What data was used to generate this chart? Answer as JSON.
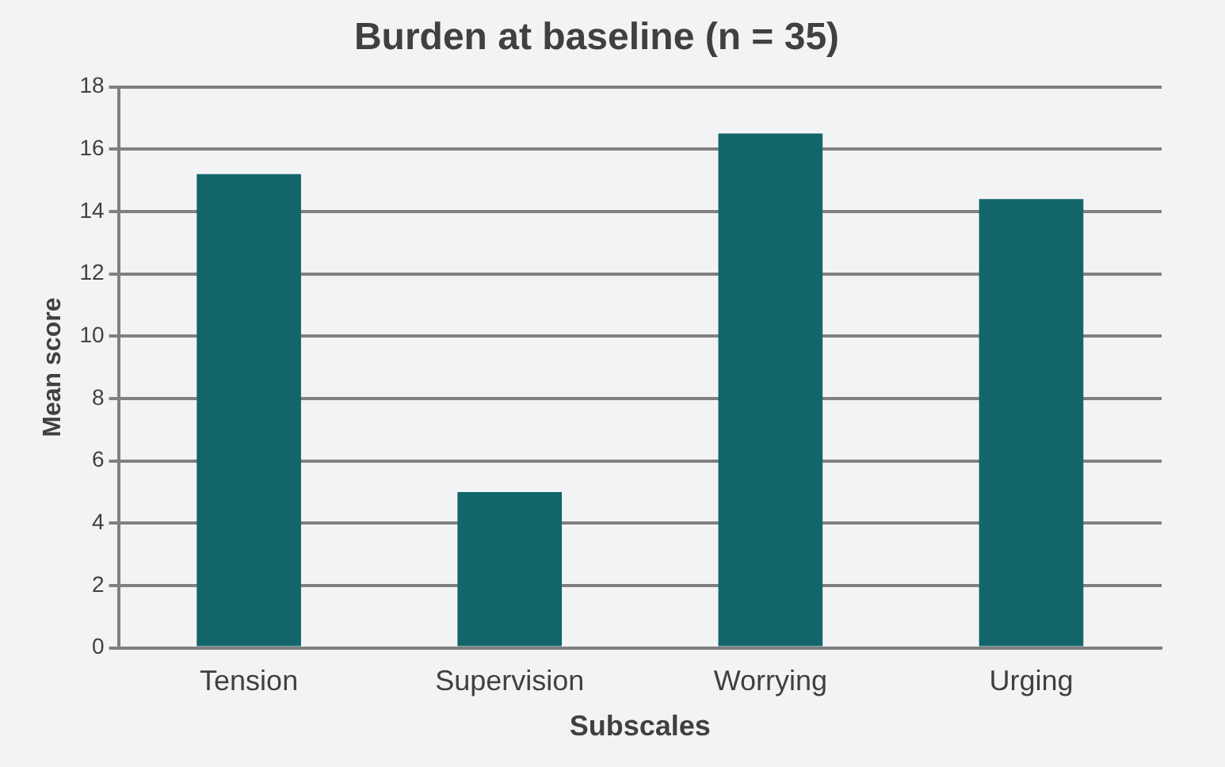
{
  "chart_data": {
    "type": "bar",
    "title": "Burden at baseline (n = 35)",
    "xlabel": "Subscales",
    "ylabel": "Mean score",
    "categories": [
      "Tension",
      "Supervision",
      "Worrying",
      "Urging"
    ],
    "values": [
      15.2,
      5.0,
      16.5,
      14.4
    ],
    "color": "#12666a",
    "ylim": [
      0,
      18
    ],
    "yticks": [
      0,
      2,
      4,
      6,
      8,
      10,
      12,
      14,
      16,
      18
    ],
    "grid": "y",
    "legend": false
  }
}
